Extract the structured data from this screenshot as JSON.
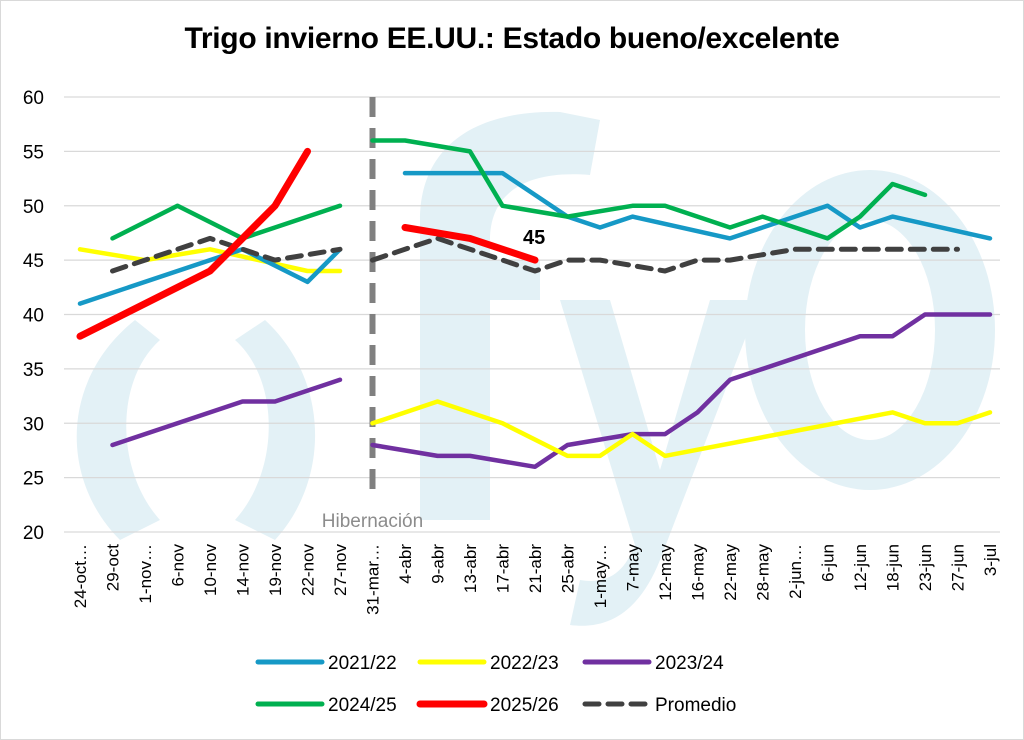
{
  "chart_data": {
    "type": "line",
    "title": "Trigo invierno EE.UU.: Estado bueno/excelente",
    "xlabel": "",
    "ylabel": "",
    "ylim": [
      20,
      60
    ],
    "yticks": [
      20,
      25,
      30,
      35,
      40,
      45,
      50,
      55,
      60
    ],
    "grid": true,
    "legend_position": "bottom",
    "categories": [
      "24-oct…",
      "29-oct",
      "1-nov…",
      "6-nov",
      "10-nov",
      "14-nov",
      "19-nov",
      "22-nov",
      "27-nov",
      "31-mar…",
      "4-abr",
      "9-abr",
      "13-abr",
      "17-abr",
      "21-abr",
      "25-abr",
      "1-may…",
      "7-may",
      "12-may",
      "16-may",
      "22-may",
      "28-may",
      "2-jun…",
      "6-jun",
      "12-jun",
      "18-jun",
      "23-jun",
      "27-jun",
      "3-jul"
    ],
    "series": [
      {
        "name": "2021/22",
        "color": "#1699c6",
        "dashed": false,
        "values": [
          41,
          null,
          null,
          null,
          null,
          46,
          null,
          43,
          46,
          null,
          53,
          null,
          null,
          53,
          null,
          49,
          48,
          49,
          null,
          null,
          47,
          48,
          null,
          50,
          48,
          49,
          null,
          null,
          47
        ]
      },
      {
        "name": "2022/23",
        "color": "#ffff00",
        "dashed": false,
        "values": [
          46,
          null,
          45,
          null,
          46,
          null,
          null,
          44,
          44,
          30,
          null,
          32,
          null,
          30,
          null,
          27,
          27,
          29,
          27,
          null,
          null,
          null,
          null,
          null,
          null,
          31,
          30,
          30,
          31
        ]
      },
      {
        "name": "2023/24",
        "color": "#7030a0",
        "dashed": false,
        "values": [
          null,
          28,
          null,
          null,
          null,
          32,
          32,
          null,
          34,
          28,
          null,
          27,
          27,
          null,
          26,
          28,
          null,
          29,
          29,
          31,
          34,
          null,
          null,
          null,
          38,
          38,
          40,
          40,
          40
        ]
      },
      {
        "name": "2024/25",
        "color": "#00b050",
        "dashed": false,
        "values": [
          null,
          47,
          null,
          50,
          null,
          47,
          48,
          null,
          50,
          56,
          56,
          null,
          55,
          50,
          null,
          49,
          null,
          50,
          50,
          null,
          48,
          49,
          null,
          47,
          49,
          52,
          51,
          null,
          null
        ]
      },
      {
        "name": "2025/26",
        "color": "#ff0000",
        "dashed": false,
        "thick": true,
        "values": [
          38,
          null,
          null,
          null,
          44,
          null,
          50,
          55,
          null,
          null,
          48,
          null,
          47,
          null,
          45,
          null,
          null,
          null,
          null,
          null,
          null,
          null,
          null,
          null,
          null,
          null,
          null,
          null,
          null
        ]
      },
      {
        "name": "Promedio",
        "color": "#404040",
        "dashed": true,
        "values": [
          null,
          44,
          45,
          null,
          47,
          null,
          45,
          null,
          46,
          45,
          null,
          47,
          null,
          45,
          44,
          45,
          45,
          null,
          44,
          45,
          45,
          null,
          46,
          46,
          46,
          46,
          46,
          46,
          null
        ]
      }
    ],
    "annotations": [
      {
        "text": "45",
        "series": "2025/26",
        "category": "21-abr"
      },
      {
        "text": "Hibernación",
        "category": "31-mar…"
      }
    ],
    "divider": {
      "category": "31-mar…",
      "label": "Hibernación"
    },
    "watermark": "()fyo"
  },
  "legend": [
    {
      "label": "2021/22"
    },
    {
      "label": "2022/23"
    },
    {
      "label": "2023/24"
    },
    {
      "label": "2024/25"
    },
    {
      "label": "2025/26"
    },
    {
      "label": "Promedio"
    }
  ]
}
